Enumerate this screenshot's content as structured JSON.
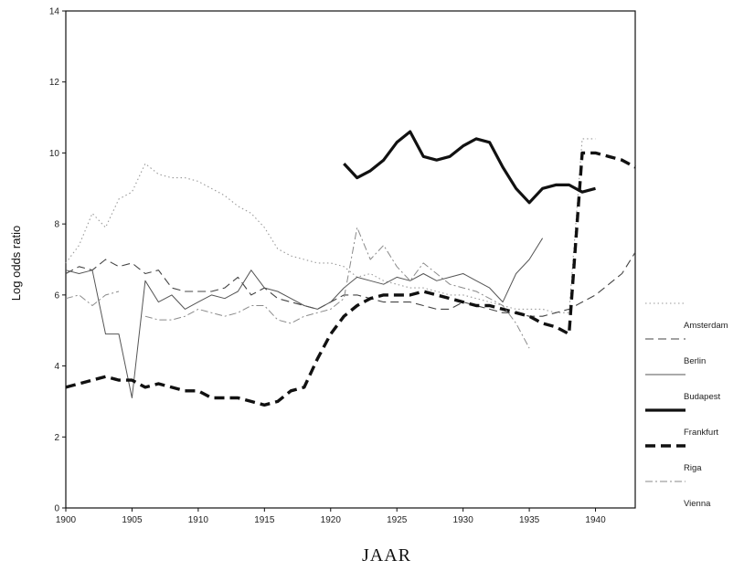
{
  "chart_data": {
    "type": "line",
    "title": "",
    "xlabel": "JAAR",
    "ylabel": "Log odds ratio",
    "xlim": [
      1900,
      1943
    ],
    "ylim": [
      0,
      14
    ],
    "x_ticks": [
      "1900",
      "1905",
      "1910",
      "1915",
      "1920",
      "1925",
      "1930",
      "1935",
      "1940"
    ],
    "y_ticks": [
      "0",
      "2",
      "4",
      "6",
      "8",
      "10",
      "12",
      "14"
    ],
    "grid": false,
    "legend_position": "right",
    "series": [
      {
        "name": "Amsterdam",
        "style": "dotted-thin",
        "color": "#9a9a9a",
        "points": [
          [
            1900,
            6.9
          ],
          [
            1901,
            7.4
          ],
          [
            1902,
            8.3
          ],
          [
            1903,
            7.9
          ],
          [
            1904,
            8.7
          ],
          [
            1905,
            8.9
          ],
          [
            1906,
            9.7
          ],
          [
            1907,
            9.4
          ],
          [
            1908,
            9.3
          ],
          [
            1909,
            9.3
          ],
          [
            1910,
            9.2
          ],
          [
            1911,
            9.0
          ],
          [
            1912,
            8.8
          ],
          [
            1913,
            8.5
          ],
          [
            1914,
            8.3
          ],
          [
            1915,
            7.9
          ],
          [
            1916,
            7.3
          ],
          [
            1917,
            7.1
          ],
          [
            1918,
            7.0
          ],
          [
            1919,
            6.9
          ],
          [
            1920,
            6.9
          ],
          [
            1921,
            6.8
          ],
          [
            1922,
            6.5
          ],
          [
            1923,
            6.6
          ],
          [
            1924,
            6.4
          ],
          [
            1925,
            6.3
          ],
          [
            1926,
            6.2
          ],
          [
            1927,
            6.2
          ],
          [
            1928,
            6.1
          ],
          [
            1929,
            6.0
          ],
          [
            1930,
            6.0
          ],
          [
            1931,
            5.9
          ],
          [
            1932,
            5.8
          ],
          [
            1933,
            5.7
          ],
          [
            1934,
            5.6
          ],
          [
            1935,
            5.6
          ],
          [
            1936,
            5.6
          ],
          [
            1937,
            5.5
          ],
          [
            1938,
            5.5
          ],
          [
            1939,
            10.4
          ],
          [
            1940,
            10.4
          ],
          [
            1941,
            null
          ]
        ]
      },
      {
        "name": "Berlin",
        "style": "dashed-thin",
        "color": "#444444",
        "points": [
          [
            1900,
            6.6
          ],
          [
            1901,
            6.8
          ],
          [
            1902,
            6.7
          ],
          [
            1903,
            7.0
          ],
          [
            1904,
            6.8
          ],
          [
            1905,
            6.9
          ],
          [
            1906,
            6.6
          ],
          [
            1907,
            6.7
          ],
          [
            1908,
            6.2
          ],
          [
            1909,
            6.1
          ],
          [
            1910,
            6.1
          ],
          [
            1911,
            6.1
          ],
          [
            1912,
            6.2
          ],
          [
            1913,
            6.5
          ],
          [
            1914,
            6.0
          ],
          [
            1915,
            6.2
          ],
          [
            1916,
            5.9
          ],
          [
            1917,
            5.8
          ],
          [
            1918,
            5.7
          ],
          [
            1919,
            5.6
          ],
          [
            1920,
            5.8
          ],
          [
            1921,
            6.0
          ],
          [
            1922,
            6.0
          ],
          [
            1923,
            5.9
          ],
          [
            1924,
            5.8
          ],
          [
            1925,
            5.8
          ],
          [
            1926,
            5.8
          ],
          [
            1927,
            5.7
          ],
          [
            1928,
            5.6
          ],
          [
            1929,
            5.6
          ],
          [
            1930,
            5.8
          ],
          [
            1931,
            5.7
          ],
          [
            1932,
            5.6
          ],
          [
            1933,
            5.5
          ],
          [
            1934,
            5.5
          ],
          [
            1935,
            5.4
          ],
          [
            1936,
            5.4
          ],
          [
            1937,
            5.5
          ],
          [
            1938,
            5.6
          ],
          [
            1939,
            5.8
          ],
          [
            1940,
            6.0
          ],
          [
            1941,
            6.3
          ],
          [
            1942,
            6.6
          ],
          [
            1943,
            7.2
          ]
        ]
      },
      {
        "name": "Budapest",
        "style": "solid-thin",
        "color": "#555555",
        "points": [
          [
            1900,
            6.7
          ],
          [
            1901,
            6.6
          ],
          [
            1902,
            6.7
          ],
          [
            1903,
            4.9
          ],
          [
            1904,
            4.9
          ],
          [
            1905,
            3.1
          ],
          [
            1906,
            6.4
          ],
          [
            1907,
            5.8
          ],
          [
            1908,
            6.0
          ],
          [
            1909,
            5.6
          ],
          [
            1910,
            5.8
          ],
          [
            1911,
            6.0
          ],
          [
            1912,
            5.9
          ],
          [
            1913,
            6.1
          ],
          [
            1914,
            6.7
          ],
          [
            1915,
            6.2
          ],
          [
            1916,
            6.1
          ],
          [
            1917,
            5.9
          ],
          [
            1918,
            5.7
          ],
          [
            1919,
            5.6
          ],
          [
            1920,
            5.8
          ],
          [
            1921,
            6.2
          ],
          [
            1922,
            6.5
          ],
          [
            1923,
            6.4
          ],
          [
            1924,
            6.3
          ],
          [
            1925,
            6.5
          ],
          [
            1926,
            6.4
          ],
          [
            1927,
            6.6
          ],
          [
            1928,
            6.4
          ],
          [
            1929,
            6.5
          ],
          [
            1930,
            6.6
          ],
          [
            1931,
            6.4
          ],
          [
            1932,
            6.2
          ],
          [
            1933,
            5.8
          ],
          [
            1934,
            6.6
          ],
          [
            1935,
            7.0
          ],
          [
            1936,
            7.6
          ]
        ]
      },
      {
        "name": "Frankfurt",
        "style": "solid-thick",
        "color": "#111111",
        "points": [
          [
            1921,
            9.7
          ],
          [
            1922,
            9.3
          ],
          [
            1923,
            9.5
          ],
          [
            1924,
            9.8
          ],
          [
            1925,
            10.3
          ],
          [
            1926,
            10.6
          ],
          [
            1927,
            9.9
          ],
          [
            1928,
            9.8
          ],
          [
            1929,
            9.9
          ],
          [
            1930,
            10.2
          ],
          [
            1931,
            10.4
          ],
          [
            1932,
            10.3
          ],
          [
            1933,
            9.6
          ],
          [
            1934,
            9.0
          ],
          [
            1935,
            8.6
          ],
          [
            1936,
            9.0
          ],
          [
            1937,
            9.1
          ],
          [
            1938,
            9.1
          ],
          [
            1939,
            8.9
          ],
          [
            1940,
            9.0
          ]
        ]
      },
      {
        "name": "Riga",
        "style": "dashed-thick",
        "color": "#111111",
        "points": [
          [
            1900,
            3.4
          ],
          [
            1901,
            3.5
          ],
          [
            1902,
            3.6
          ],
          [
            1903,
            3.7
          ],
          [
            1904,
            3.6
          ],
          [
            1905,
            3.6
          ],
          [
            1906,
            3.4
          ],
          [
            1907,
            3.5
          ],
          [
            1908,
            3.4
          ],
          [
            1909,
            3.3
          ],
          [
            1910,
            3.3
          ],
          [
            1911,
            3.1
          ],
          [
            1912,
            3.1
          ],
          [
            1913,
            3.1
          ],
          [
            1914,
            3.0
          ],
          [
            1915,
            2.9
          ],
          [
            1916,
            3.0
          ],
          [
            1917,
            3.3
          ],
          [
            1918,
            3.4
          ],
          [
            1919,
            4.2
          ],
          [
            1920,
            4.9
          ],
          [
            1921,
            5.4
          ],
          [
            1922,
            5.7
          ],
          [
            1923,
            5.9
          ],
          [
            1924,
            6.0
          ],
          [
            1925,
            6.0
          ],
          [
            1926,
            6.0
          ],
          [
            1927,
            6.1
          ],
          [
            1928,
            6.0
          ],
          [
            1929,
            5.9
          ],
          [
            1930,
            5.8
          ],
          [
            1931,
            5.7
          ],
          [
            1932,
            5.7
          ],
          [
            1933,
            5.6
          ],
          [
            1934,
            5.5
          ],
          [
            1935,
            5.4
          ],
          [
            1936,
            5.2
          ],
          [
            1937,
            5.1
          ],
          [
            1938,
            4.9
          ],
          [
            1939,
            10.0
          ],
          [
            1940,
            10.0
          ],
          [
            1941,
            9.9
          ],
          [
            1942,
            9.8
          ],
          [
            1943,
            9.6
          ]
        ]
      },
      {
        "name": "Vienna",
        "style": "dashdot-thin",
        "color": "#8a8a8a",
        "points": [
          [
            1900,
            5.9
          ],
          [
            1901,
            6.0
          ],
          [
            1902,
            5.7
          ],
          [
            1903,
            6.0
          ],
          [
            1904,
            6.1
          ],
          [
            1905,
            null
          ],
          [
            1906,
            5.4
          ],
          [
            1907,
            5.3
          ],
          [
            1908,
            5.3
          ],
          [
            1909,
            5.4
          ],
          [
            1910,
            5.6
          ],
          [
            1911,
            5.5
          ],
          [
            1912,
            5.4
          ],
          [
            1913,
            5.5
          ],
          [
            1914,
            5.7
          ],
          [
            1915,
            5.7
          ],
          [
            1916,
            5.3
          ],
          [
            1917,
            5.2
          ],
          [
            1918,
            5.4
          ],
          [
            1919,
            5.5
          ],
          [
            1920,
            5.6
          ],
          [
            1921,
            5.9
          ],
          [
            1922,
            7.9
          ],
          [
            1923,
            7.0
          ],
          [
            1924,
            7.4
          ],
          [
            1925,
            6.8
          ],
          [
            1926,
            6.4
          ],
          [
            1927,
            6.9
          ],
          [
            1928,
            6.6
          ],
          [
            1929,
            6.3
          ],
          [
            1930,
            6.2
          ],
          [
            1931,
            6.1
          ],
          [
            1932,
            5.9
          ],
          [
            1933,
            5.7
          ],
          [
            1934,
            5.2
          ],
          [
            1935,
            4.5
          ]
        ]
      }
    ]
  }
}
